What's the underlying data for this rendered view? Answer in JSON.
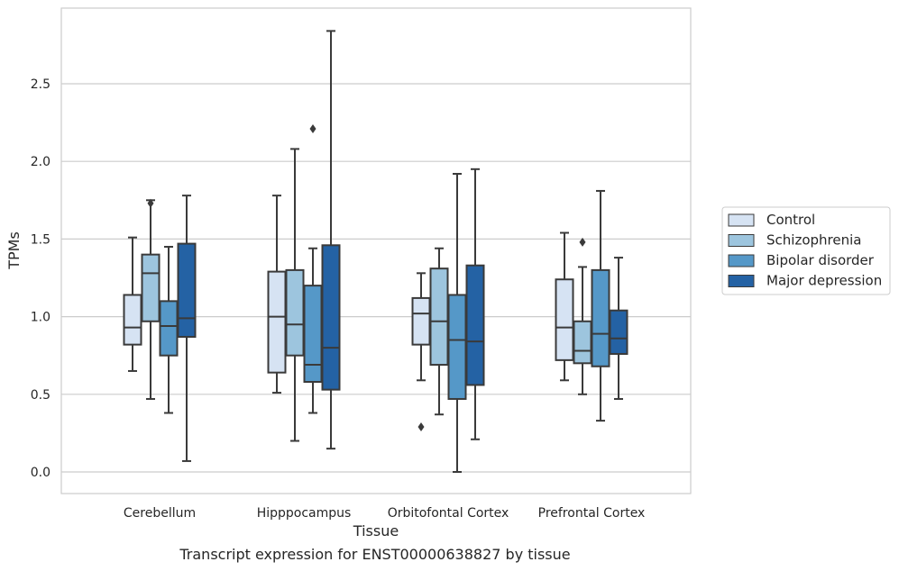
{
  "chart_data": {
    "type": "box",
    "xlabel": "Tissue",
    "ylabel": "TPMs",
    "ylim": [
      -0.14,
      2.98
    ],
    "yticks": [
      "0.0",
      "0.5",
      "1.0",
      "1.5",
      "2.0",
      "2.5"
    ],
    "grid": "horizontal",
    "legend_position": "right",
    "categories": [
      "Cerebellum",
      "Hipppocampus",
      "Orbitofontal Cortex",
      "Prefrontal Cortex"
    ],
    "series": [
      {
        "name": "Control",
        "color": "#d6e3f3",
        "boxes": [
          {
            "whislo": 0.65,
            "q1": 0.82,
            "med": 0.93,
            "q3": 1.14,
            "whishi": 1.51,
            "fliers": []
          },
          {
            "whislo": 0.51,
            "q1": 0.64,
            "med": 1.0,
            "q3": 1.29,
            "whishi": 1.78,
            "fliers": []
          },
          {
            "whislo": 0.59,
            "q1": 0.82,
            "med": 1.02,
            "q3": 1.12,
            "whishi": 1.28,
            "fliers": [
              0.29
            ]
          },
          {
            "whislo": 0.59,
            "q1": 0.72,
            "med": 0.93,
            "q3": 1.24,
            "whishi": 1.54,
            "fliers": []
          }
        ]
      },
      {
        "name": "Schizophrenia",
        "color": "#9dc5de",
        "boxes": [
          {
            "whislo": 0.47,
            "q1": 0.97,
            "med": 1.28,
            "q3": 1.4,
            "whishi": 1.75,
            "fliers": [
              1.73
            ]
          },
          {
            "whislo": 0.2,
            "q1": 0.75,
            "med": 0.95,
            "q3": 1.3,
            "whishi": 2.08,
            "fliers": []
          },
          {
            "whislo": 0.37,
            "q1": 0.69,
            "med": 0.97,
            "q3": 1.31,
            "whishi": 1.44,
            "fliers": []
          },
          {
            "whislo": 0.5,
            "q1": 0.7,
            "med": 0.78,
            "q3": 0.97,
            "whishi": 1.32,
            "fliers": [
              1.48
            ]
          }
        ]
      },
      {
        "name": "Bipolar disorder",
        "color": "#5598c8",
        "boxes": [
          {
            "whislo": 0.38,
            "q1": 0.75,
            "med": 0.94,
            "q3": 1.1,
            "whishi": 1.45,
            "fliers": []
          },
          {
            "whislo": 0.38,
            "q1": 0.58,
            "med": 0.69,
            "q3": 1.2,
            "whishi": 1.44,
            "fliers": [
              2.21
            ]
          },
          {
            "whislo": 0.0,
            "q1": 0.47,
            "med": 0.85,
            "q3": 1.14,
            "whishi": 1.92,
            "fliers": []
          },
          {
            "whislo": 0.33,
            "q1": 0.68,
            "med": 0.89,
            "q3": 1.3,
            "whishi": 1.81,
            "fliers": []
          }
        ]
      },
      {
        "name": "Major depression",
        "color": "#2462a4",
        "boxes": [
          {
            "whislo": 0.07,
            "q1": 0.87,
            "med": 0.99,
            "q3": 1.47,
            "whishi": 1.78,
            "fliers": []
          },
          {
            "whislo": 0.15,
            "q1": 0.53,
            "med": 0.8,
            "q3": 1.46,
            "whishi": 2.84,
            "fliers": []
          },
          {
            "whislo": 0.21,
            "q1": 0.56,
            "med": 0.84,
            "q3": 1.33,
            "whishi": 1.95,
            "fliers": []
          },
          {
            "whislo": 0.47,
            "q1": 0.76,
            "med": 0.86,
            "q3": 1.04,
            "whishi": 1.38,
            "fliers": []
          }
        ]
      }
    ]
  },
  "caption": "Transcript expression for ENST00000638827 by tissue"
}
